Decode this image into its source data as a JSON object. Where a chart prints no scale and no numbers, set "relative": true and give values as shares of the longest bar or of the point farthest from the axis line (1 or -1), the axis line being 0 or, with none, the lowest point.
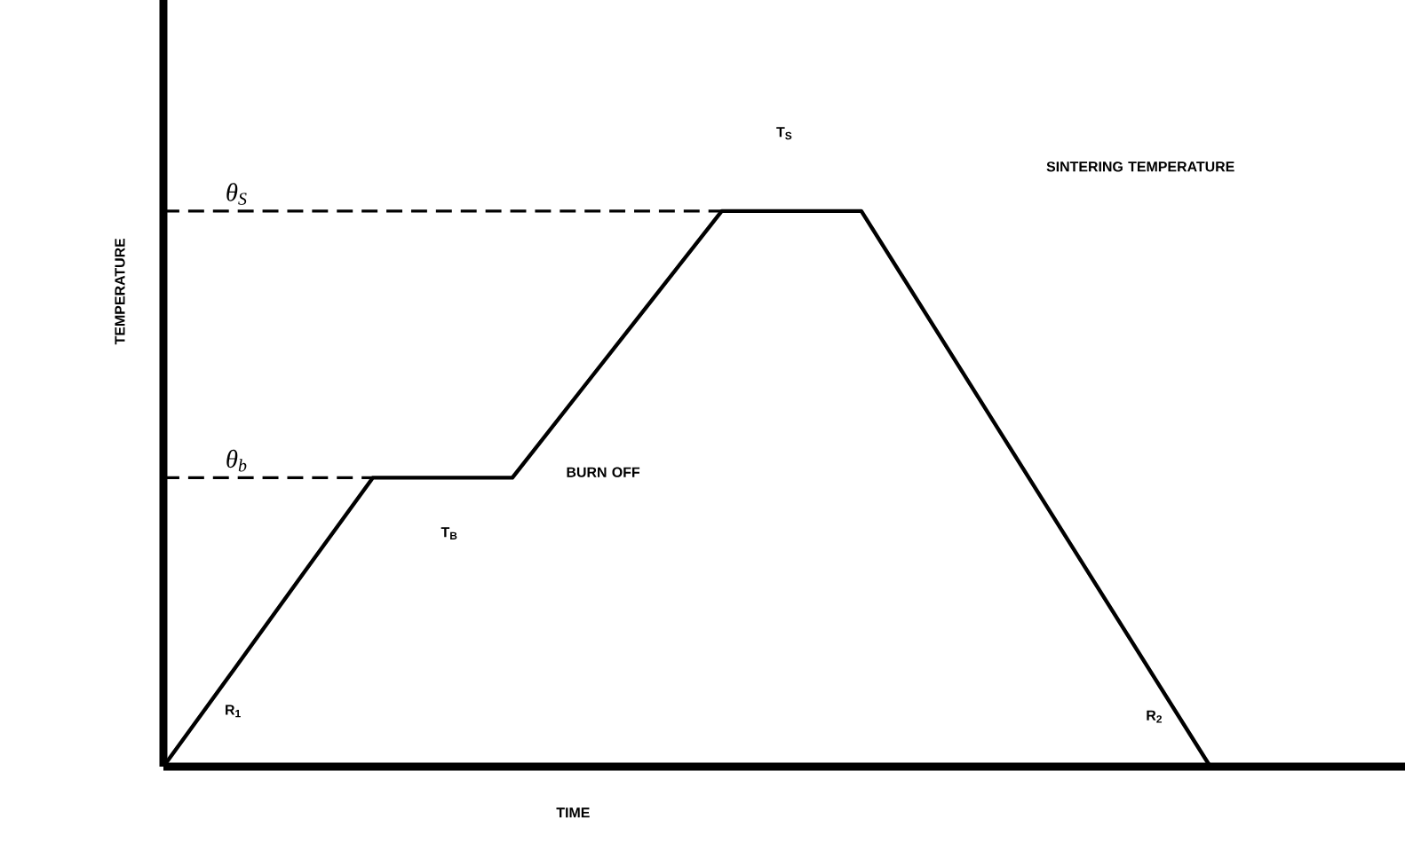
{
  "chart_data": {
    "type": "line",
    "relative": true,
    "xlabel": "TIME",
    "ylabel": "TEMPERATURE",
    "marker": "none",
    "line_style": "solid",
    "categories": [
      null,
      null,
      null,
      null,
      null,
      null,
      null,
      null,
      null,
      null,
      null,
      null,
      null,
      null,
      null,
      null
    ],
    "series": [
      {
        "color": "#000000",
        "values": [
          0,
          0.173,
          0.347,
          0.52,
          0.52,
          0.52,
          0.68,
          0.84,
          1,
          1,
          1,
          0.8,
          0.6,
          0.4,
          0.2,
          0
        ]
      }
    ],
    "ref_lines": [
      {
        "axis": "y",
        "value": 1,
        "label": "θ$_{S}$",
        "line_style": "dashed",
        "color": "#000000"
      },
      {
        "axis": "y",
        "value": 0.52,
        "label": "θ$_{b}$",
        "line_style": "dashed",
        "color": "#000000"
      }
    ],
    "annotations": [
      "T$_{S}$",
      "SINTERING TEMPERATURE",
      "BURN OFF",
      "T$_{B}$",
      "R$_{1}$",
      "R$_{2}$"
    ]
  }
}
